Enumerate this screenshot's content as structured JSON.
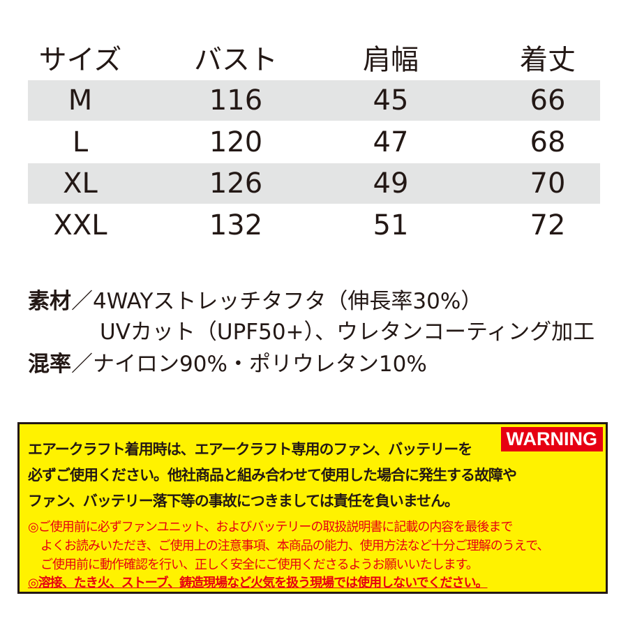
{
  "table": {
    "headers": [
      "サイズ",
      "バスト",
      "肩幅",
      "着丈"
    ],
    "rows": [
      [
        "M",
        "116",
        "45",
        "66"
      ],
      [
        "L",
        "120",
        "47",
        "68"
      ],
      [
        "XL",
        "126",
        "49",
        "70"
      ],
      [
        "XXL",
        "132",
        "51",
        "72"
      ]
    ]
  },
  "material": {
    "label1": "素材",
    "sep1": "／",
    "line1": "4WAYストレッチタフタ（伸長率30%）",
    "line2": "UVカット（UPF50+）、ウレタンコーティング加工",
    "label2": "混率",
    "sep2": "／",
    "line3": "ナイロン90%・ポリウレタン10%"
  },
  "warning": {
    "badge": "WARNING",
    "lines": [
      "エアークラフト着用時は、エアークラフト専用のファン、バッテリーを",
      "必ずご使用ください。他社商品と組み合わせて使用した場合に発生する故障や",
      "ファン、バッテリー落下等の事故につきましては責任を負いません。"
    ],
    "notes": [
      "◎ご使用前に必ずファンユニット、およびバッテリーの取扱説明書に記載の内容を最後まで",
      "よくお読みいただき、ご使用上の注意事項、本商品の能力、使用方法など十分ご理解のうえで、",
      "ご使用前に動作確認を行い、正しく安全にご使用くださるようお願いいたします。",
      "◎溶接、たき火、ストーブ、鋳造現場など火気を扱う現場では使用しないでください。"
    ],
    "colors": {
      "background": "#fff200",
      "accent": "#e60012"
    }
  }
}
